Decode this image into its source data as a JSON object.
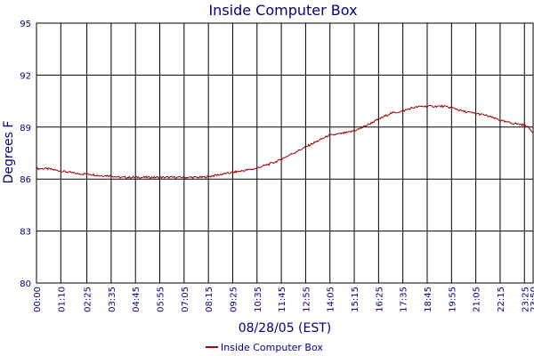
{
  "chart_data": {
    "type": "line",
    "title": "Inside Computer Box",
    "xlabel": "08/28/05 (EST)",
    "ylabel": "Degrees F",
    "x_tick_labels": [
      "00:00",
      "01:10",
      "02:25",
      "03:35",
      "04:45",
      "05:55",
      "07:05",
      "08:15",
      "09:25",
      "10:35",
      "11:45",
      "12:55",
      "14:05",
      "15:15",
      "16:25",
      "17:35",
      "18:45",
      "19:55",
      "21:05",
      "22:15",
      "23:25",
      "23:50"
    ],
    "y_tick_labels": [
      "80",
      "83",
      "86",
      "89",
      "92",
      "95"
    ],
    "ylim": [
      80,
      95
    ],
    "grid": true,
    "legend_position": "bottom-center",
    "colors": {
      "series": "#990000",
      "grid": "#000000",
      "axis_text": "#000080",
      "plot_border": "#000000"
    },
    "series": [
      {
        "name": "Inside Computer Box",
        "x_hours": [
          0,
          0.5,
          1,
          1.5,
          2,
          2.5,
          3,
          3.5,
          4,
          4.5,
          5,
          5.5,
          6,
          6.5,
          7,
          7.5,
          8,
          8.5,
          9,
          9.5,
          10,
          10.5,
          11,
          11.5,
          12,
          12.5,
          13,
          13.5,
          14,
          14.5,
          15,
          15.5,
          16,
          16.5,
          17,
          17.5,
          18,
          18.5,
          19,
          19.5,
          20,
          20.5,
          21,
          21.5,
          22,
          22.5,
          23,
          23.5,
          23.83
        ],
        "values": [
          86.6,
          86.6,
          86.5,
          86.4,
          86.3,
          86.3,
          86.2,
          86.2,
          86.1,
          86.1,
          86.1,
          86.1,
          86.1,
          86.1,
          86.1,
          86.1,
          86.1,
          86.2,
          86.3,
          86.4,
          86.5,
          86.6,
          86.8,
          87.0,
          87.3,
          87.6,
          87.9,
          88.2,
          88.5,
          88.6,
          88.7,
          88.9,
          89.2,
          89.5,
          89.8,
          89.9,
          90.1,
          90.2,
          90.2,
          90.2,
          90.1,
          89.9,
          89.8,
          89.7,
          89.5,
          89.3,
          89.2,
          89.1,
          88.7
        ]
      }
    ]
  }
}
